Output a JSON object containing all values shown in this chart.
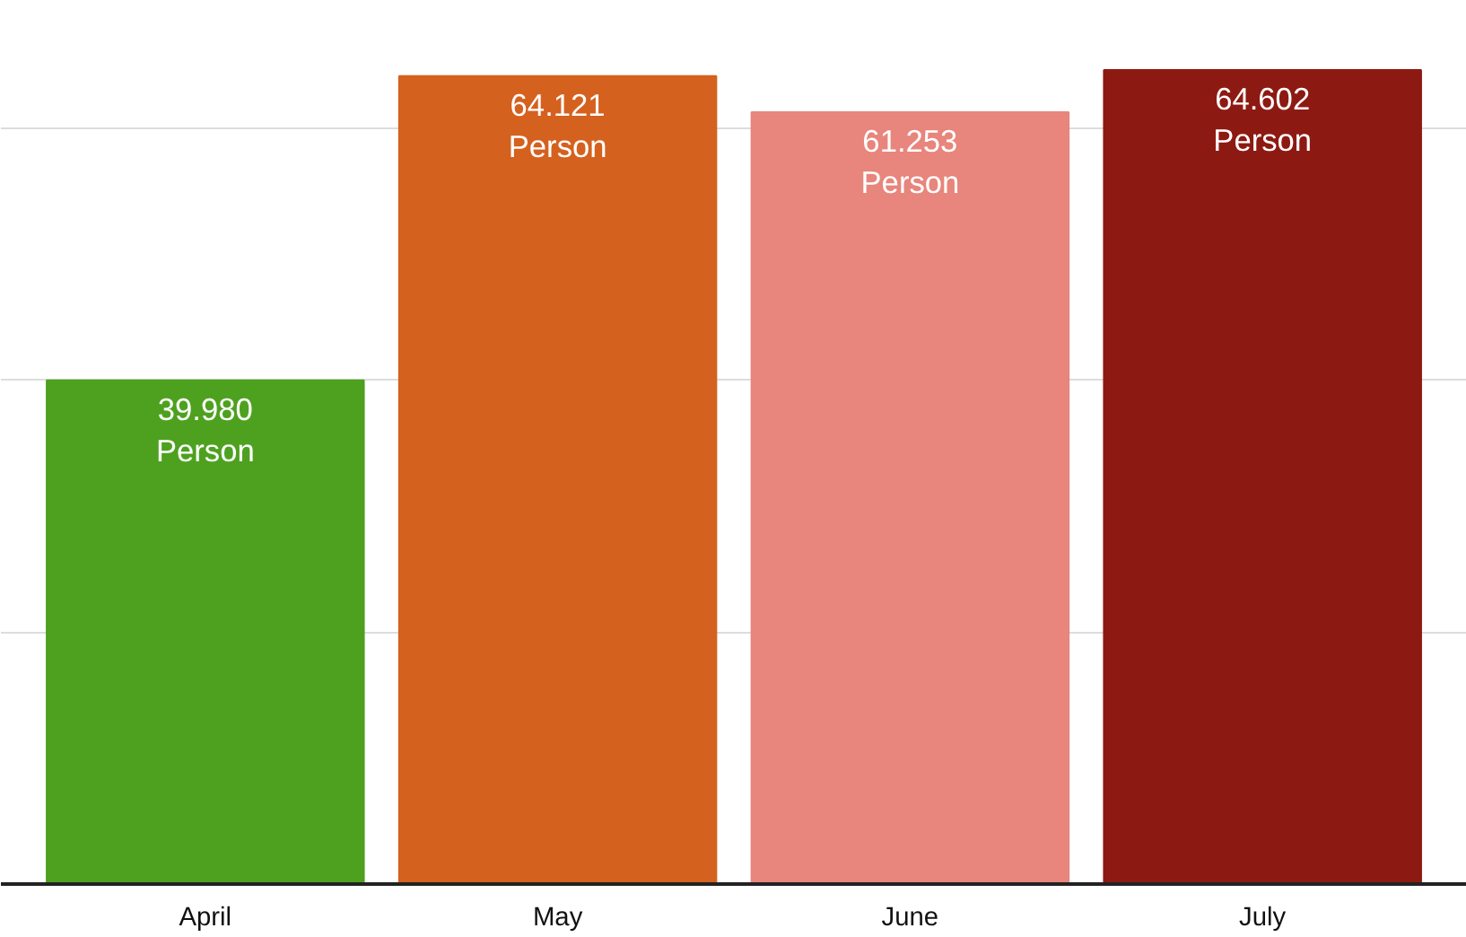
{
  "chart_data": {
    "type": "bar",
    "categories": [
      "April",
      "May",
      "June",
      "July"
    ],
    "values": [
      39980,
      64121,
      61253,
      64602
    ],
    "colors": [
      "#4ea11f",
      "#d5611e",
      "#e8857c",
      "#8d1a12"
    ],
    "value_labels": [
      "39.980\nPerson",
      "64.121\nPerson",
      "61.253\nPerson",
      "64.602\nPerson"
    ],
    "grid": "y",
    "tick_labels": "x"
  }
}
